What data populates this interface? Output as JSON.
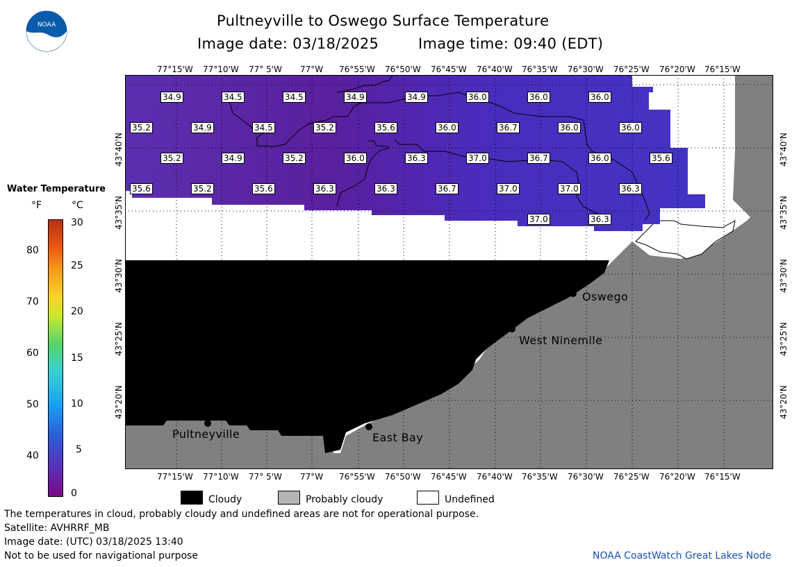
{
  "header": {
    "title": "Pultneyville to Oswego Surface Temperature",
    "image_date": "Image date: 03/18/2025",
    "image_time": "Image time: 09:40 (EDT)"
  },
  "logo": {
    "text": "NOAA",
    "color": "#0a5bab"
  },
  "axes": {
    "lon_labels": [
      "77°15'W",
      "77°10'W",
      "77° 5'W",
      "77°W",
      "76°55'W",
      "76°50'W",
      "76°45'W",
      "76°40'W",
      "76°35'W",
      "76°30'W",
      "76°25'W",
      "76°20'W",
      "76°15'W"
    ],
    "lat_labels": [
      "43°40'N",
      "43°35'N",
      "43°30'N",
      "43°25'N",
      "43°20'N"
    ]
  },
  "legend": {
    "title": "Water Temperature",
    "unit_f": "°F",
    "unit_c": "°C",
    "f_ticks": [
      "80",
      "70",
      "60",
      "50",
      "40"
    ],
    "c_ticks": [
      "30",
      "25",
      "20",
      "15",
      "10",
      "5",
      "0"
    ]
  },
  "temperatures": [
    {
      "row": 0,
      "values": [
        "34.9",
        "34.5",
        "34.5",
        "34.9",
        "34.9",
        "36.0",
        "36.0",
        "36.0"
      ]
    },
    {
      "row": 1,
      "values": [
        "35.2",
        "34.9",
        "34.5",
        "35.2",
        "35.6",
        "36.0",
        "36.7",
        "36.0",
        "36.0"
      ]
    },
    {
      "row": 2,
      "values": [
        "35.2",
        "34.9",
        "35.2",
        "36.0",
        "36.3",
        "37.0",
        "36.7",
        "36.0",
        "35.6"
      ]
    },
    {
      "row": 3,
      "values": [
        "35.6",
        "35.2",
        "35.6",
        "36.3",
        "36.3",
        "36.7",
        "37.0",
        "37.0",
        "36.3"
      ]
    },
    {
      "row": 4,
      "values": [
        "37.0",
        "36.3"
      ]
    }
  ],
  "places": [
    "Oswego",
    "West Ninemile",
    "Pultneyville",
    "East Bay"
  ],
  "key": {
    "cloudy": "Cloudy",
    "probably_cloudy": "Probably cloudy",
    "undefined": "Undefined",
    "colors": {
      "cloudy": "#000000",
      "probably_cloudy": "#b4b4b4",
      "undefined": "#ffffff"
    }
  },
  "footer": {
    "note": "The temperatures in cloud, probably cloudy and undefined areas are not for operational purpose.",
    "satellite": "Satellite: AVHRRF_MB",
    "utc_date": "Image date: (UTC) 03/18/2025  13:40",
    "nav_warning": "Not to be used for navigational purpose",
    "credit": "NOAA CoastWatch Great Lakes Node",
    "credit_color": "#1a4fb5"
  },
  "colors": {
    "land": "#808080",
    "water_cold": "#5a1fa8",
    "water_mid": "#4a30c0"
  }
}
